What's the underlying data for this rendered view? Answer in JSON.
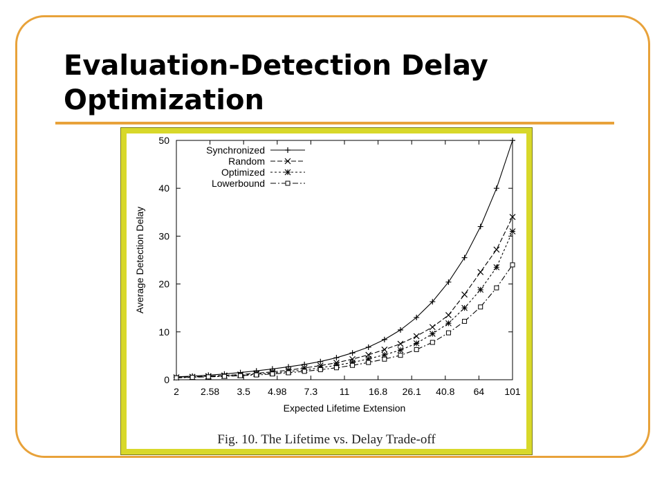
{
  "slide": {
    "title": "Evaluation-Detection Delay Optimization",
    "caption": "Fig. 10.    The Lifetime vs. Delay Trade-off",
    "accent_color": "#e8a23a",
    "figure_border_color": "#d8d82a"
  },
  "chart_data": {
    "type": "line",
    "xlabel": "Expected Lifetime Extension",
    "ylabel": "Average Detection Delay",
    "x_ticks": [
      "2",
      "2.58",
      "3.5",
      "4.98",
      "7.3",
      "11",
      "16.8",
      "26.1",
      "40.8",
      "64",
      "101"
    ],
    "ylim": [
      0,
      50
    ],
    "y_ticks": [
      0,
      10,
      20,
      30,
      40,
      50
    ],
    "legend_position": "top-left",
    "grid": false,
    "series": [
      {
        "name": "Synchronized",
        "marker": "plus",
        "dash": "",
        "values": [
          0.6,
          0.75,
          0.95,
          1.2,
          1.5,
          1.85,
          2.25,
          2.7,
          3.2,
          3.8,
          4.6,
          5.6,
          6.8,
          8.4,
          10.4,
          13.0,
          16.3,
          20.4,
          25.5,
          32.0,
          40.0,
          50.0
        ]
      },
      {
        "name": "Random",
        "marker": "x",
        "dash": "7,3",
        "values": [
          0.5,
          0.6,
          0.75,
          0.9,
          1.1,
          1.35,
          1.65,
          2.0,
          2.45,
          2.95,
          3.55,
          4.3,
          5.2,
          6.3,
          7.5,
          9.1,
          11.0,
          13.5,
          17.8,
          22.5,
          27.2,
          34.0
        ]
      },
      {
        "name": "Optimized",
        "marker": "star",
        "dash": "3,3",
        "values": [
          0.45,
          0.55,
          0.65,
          0.8,
          0.95,
          1.15,
          1.4,
          1.7,
          2.05,
          2.5,
          3.0,
          3.6,
          4.35,
          5.2,
          6.2,
          7.6,
          9.6,
          11.8,
          15.0,
          18.8,
          23.5,
          31.0
        ]
      },
      {
        "name": "Lowerbound",
        "marker": "square",
        "dash": "8,3,2,3",
        "values": [
          0.4,
          0.5,
          0.6,
          0.7,
          0.85,
          1.0,
          1.2,
          1.45,
          1.75,
          2.1,
          2.5,
          3.0,
          3.6,
          4.3,
          5.1,
          6.3,
          7.8,
          9.8,
          12.2,
          15.2,
          19.2,
          24.0
        ]
      }
    ]
  }
}
